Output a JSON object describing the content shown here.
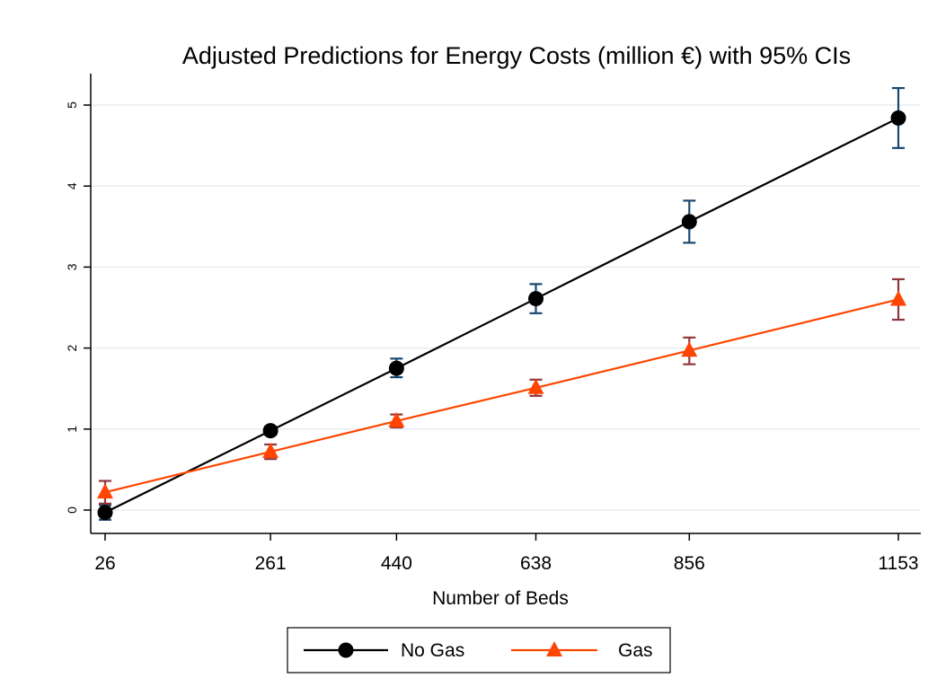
{
  "chart_data": {
    "type": "line",
    "title": "Adjusted Predictions for Energy Costs (million €) with 95% CIs",
    "xlabel": "Number of Beds",
    "ylabel": "",
    "x": [
      26,
      261,
      440,
      638,
      856,
      1153
    ],
    "xticks": [
      26,
      261,
      440,
      638,
      856,
      1153
    ],
    "yticks": [
      0,
      1,
      2,
      3,
      4,
      5
    ],
    "xlim": [
      26,
      1153
    ],
    "ylim": [
      -0.25,
      5.4
    ],
    "grid": "horizontal",
    "legend_position": "bottom",
    "series": [
      {
        "name": "No Gas",
        "marker": "circle",
        "color": "#000000",
        "ci_color": "#1a476f",
        "values": [
          -0.03,
          0.98,
          1.75,
          2.61,
          3.56,
          4.84
        ],
        "ci_low": [
          -0.12,
          0.93,
          1.64,
          2.43,
          3.3,
          4.47
        ],
        "ci_high": [
          0.06,
          1.03,
          1.87,
          2.79,
          3.82,
          5.21
        ]
      },
      {
        "name": "Gas",
        "marker": "triangle",
        "color": "#ff4500",
        "ci_color": "#90353b",
        "values": [
          0.22,
          0.72,
          1.1,
          1.51,
          1.97,
          2.6
        ],
        "ci_low": [
          0.08,
          0.63,
          1.02,
          1.41,
          1.8,
          2.35
        ],
        "ci_high": [
          0.36,
          0.81,
          1.18,
          1.61,
          2.13,
          2.85
        ]
      }
    ]
  }
}
